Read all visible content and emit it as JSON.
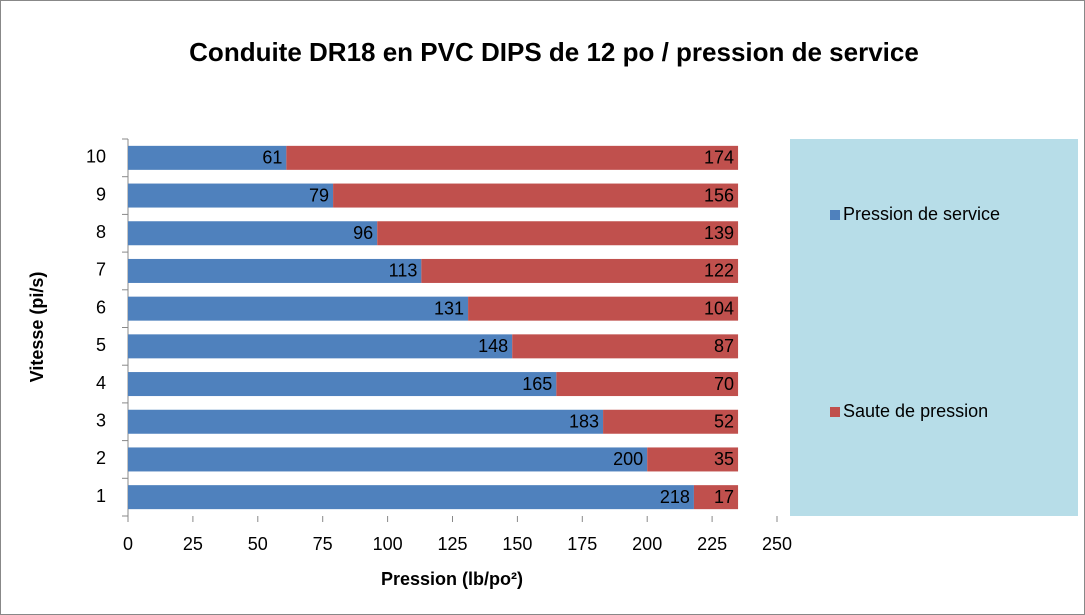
{
  "chart_data": {
    "type": "hbar_stacked",
    "title": "Conduite DR18 en PVC DIPS de 12 po / pression de service",
    "xlabel": "Pression (lb/po²)",
    "ylabel": "Vitesse (pi/s)",
    "categories": [
      "1",
      "2",
      "3",
      "4",
      "5",
      "6",
      "7",
      "8",
      "9",
      "10"
    ],
    "series": [
      {
        "name": "Pression de service",
        "color": "#4f81bd",
        "values": [
          218,
          200,
          183,
          165,
          148,
          131,
          113,
          96,
          79,
          61
        ]
      },
      {
        "name": "Saute de pression",
        "color": "#c0504d",
        "values": [
          17,
          35,
          52,
          70,
          87,
          104,
          122,
          139,
          156,
          174
        ]
      }
    ],
    "xlim": [
      0,
      250
    ],
    "xticks": [
      0,
      25,
      50,
      75,
      100,
      125,
      150,
      175,
      200,
      225,
      250
    ],
    "legend": "right",
    "legend_background": "#b7dde8"
  }
}
